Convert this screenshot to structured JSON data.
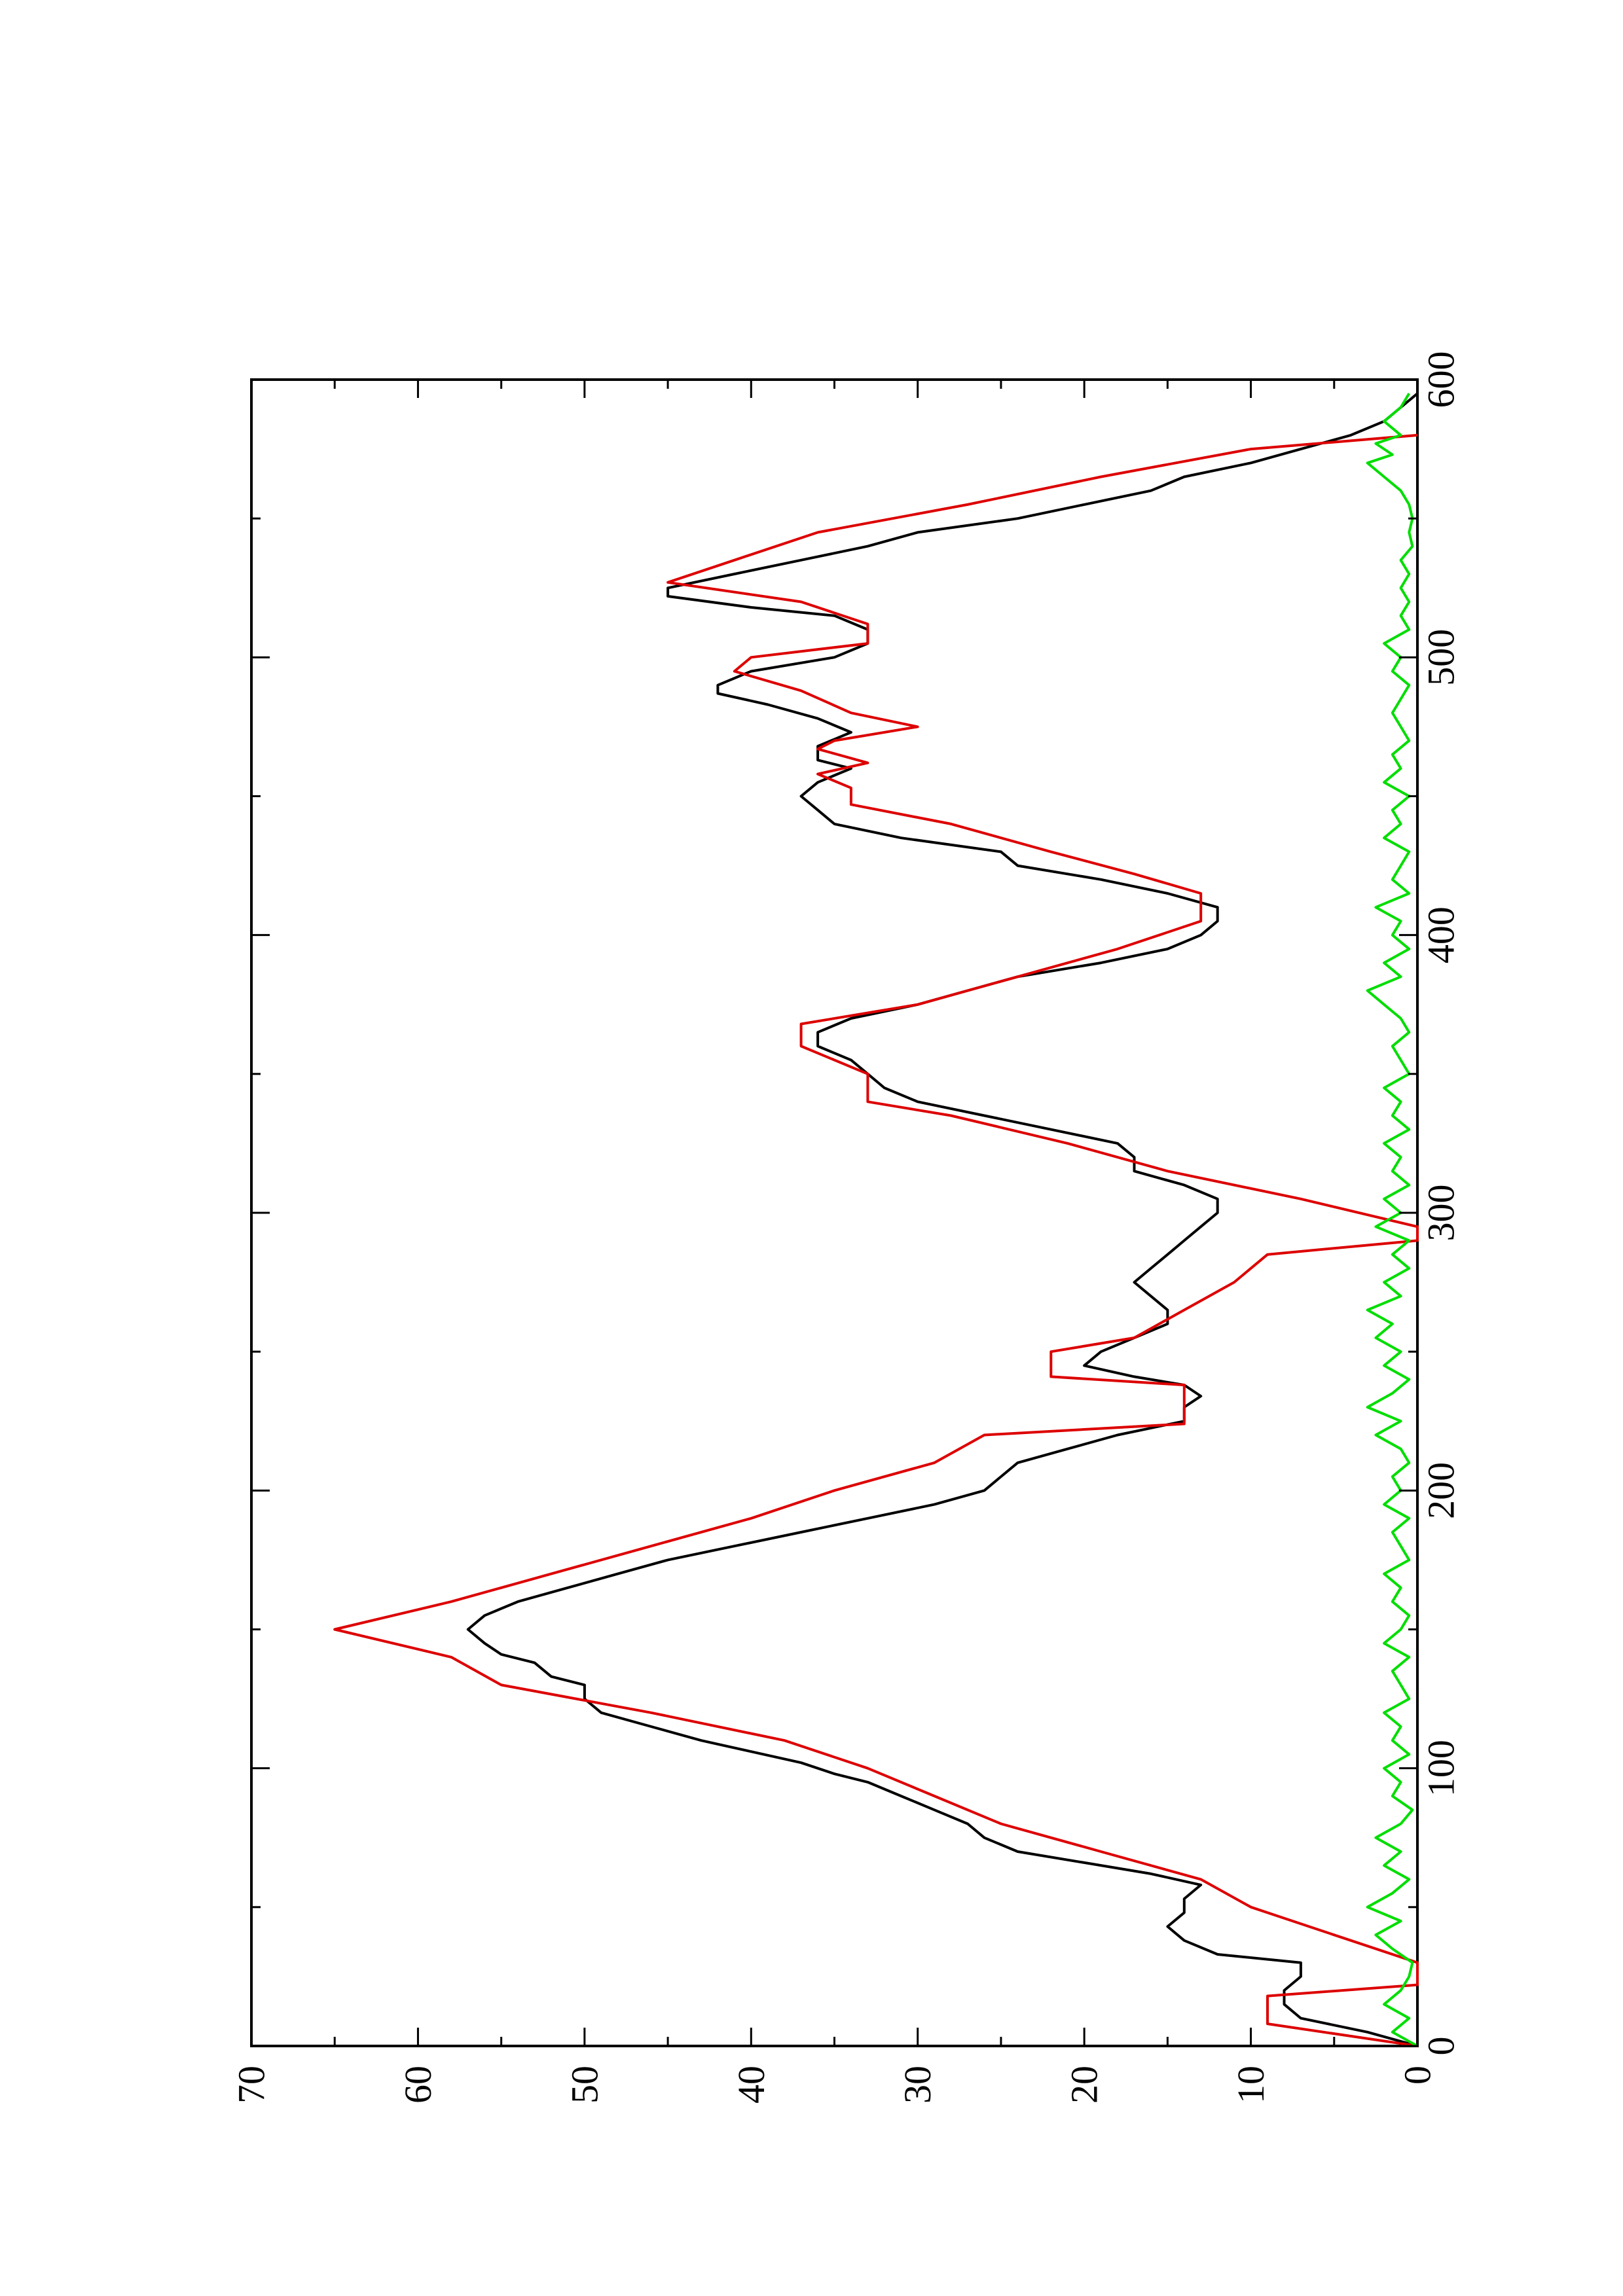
{
  "chart_data": {
    "type": "line",
    "title": "",
    "xlabel": "",
    "ylabel": "",
    "orientation": "rotated-90-ccw",
    "xlim": [
      0,
      600
    ],
    "ylim": [
      0,
      70
    ],
    "x_ticks": [
      0,
      100,
      200,
      300,
      400,
      500,
      600
    ],
    "x_tick_labels": [
      "0",
      "100",
      "200",
      "300",
      "400",
      "500",
      "600"
    ],
    "x_minor_ticks": [
      50,
      150,
      250,
      350,
      450,
      550
    ],
    "y_ticks": [
      0,
      10,
      20,
      30,
      40,
      50,
      60,
      70
    ],
    "y_tick_labels": [
      "0",
      "10",
      "20",
      "30",
      "40",
      "50",
      "60",
      "70"
    ],
    "y_minor_ticks": [
      5,
      15,
      25,
      35,
      45,
      55,
      65
    ],
    "grid": false,
    "legend": "none",
    "colors": {
      "series_a": "#000000",
      "series_b": "#dd0000",
      "series_c": "#00dd00",
      "axes": "#000000"
    },
    "series": [
      {
        "color": "#000000",
        "points": [
          [
            0,
            0
          ],
          [
            5,
            3
          ],
          [
            10,
            7
          ],
          [
            15,
            8
          ],
          [
            20,
            8
          ],
          [
            25,
            7
          ],
          [
            30,
            7
          ],
          [
            33,
            12
          ],
          [
            38,
            14
          ],
          [
            43,
            15
          ],
          [
            48,
            14
          ],
          [
            53,
            14
          ],
          [
            58,
            13
          ],
          [
            62,
            16
          ],
          [
            66,
            20
          ],
          [
            70,
            24
          ],
          [
            75,
            26
          ],
          [
            80,
            27
          ],
          [
            85,
            29
          ],
          [
            90,
            31
          ],
          [
            95,
            33
          ],
          [
            98,
            35
          ],
          [
            102,
            37
          ],
          [
            106,
            40
          ],
          [
            110,
            43
          ],
          [
            115,
            46
          ],
          [
            120,
            49
          ],
          [
            125,
            50
          ],
          [
            130,
            50
          ],
          [
            133,
            52
          ],
          [
            138,
            53
          ],
          [
            141,
            55
          ],
          [
            145,
            56
          ],
          [
            150,
            57
          ],
          [
            155,
            56
          ],
          [
            160,
            54
          ],
          [
            165,
            51
          ],
          [
            170,
            48
          ],
          [
            175,
            45
          ],
          [
            180,
            41
          ],
          [
            185,
            37
          ],
          [
            190,
            33
          ],
          [
            195,
            29
          ],
          [
            200,
            26
          ],
          [
            205,
            25
          ],
          [
            210,
            24
          ],
          [
            215,
            21
          ],
          [
            220,
            18
          ],
          [
            225,
            14
          ],
          [
            230,
            14
          ],
          [
            234,
            13
          ],
          [
            238,
            14
          ],
          [
            241,
            17
          ],
          [
            245,
            20
          ],
          [
            250,
            19
          ],
          [
            255,
            17
          ],
          [
            260,
            15
          ],
          [
            265,
            15
          ],
          [
            270,
            16
          ],
          [
            275,
            17
          ],
          [
            280,
            16
          ],
          [
            285,
            15
          ],
          [
            290,
            14
          ],
          [
            295,
            13
          ],
          [
            300,
            12
          ],
          [
            305,
            12
          ],
          [
            310,
            14
          ],
          [
            315,
            17
          ],
          [
            320,
            17
          ],
          [
            325,
            18
          ],
          [
            330,
            22
          ],
          [
            335,
            26
          ],
          [
            340,
            30
          ],
          [
            345,
            32
          ],
          [
            350,
            33
          ],
          [
            355,
            34
          ],
          [
            360,
            36
          ],
          [
            365,
            36
          ],
          [
            370,
            34
          ],
          [
            375,
            30
          ],
          [
            380,
            27
          ],
          [
            385,
            24
          ],
          [
            390,
            19
          ],
          [
            395,
            15
          ],
          [
            400,
            13
          ],
          [
            405,
            12
          ],
          [
            410,
            12
          ],
          [
            415,
            15
          ],
          [
            420,
            19
          ],
          [
            425,
            24
          ],
          [
            430,
            25
          ],
          [
            435,
            31
          ],
          [
            440,
            35
          ],
          [
            445,
            36
          ],
          [
            450,
            37
          ],
          [
            455,
            36
          ],
          [
            460,
            34
          ],
          [
            463,
            36
          ],
          [
            468,
            36
          ],
          [
            473,
            34
          ],
          [
            478,
            36
          ],
          [
            483,
            39
          ],
          [
            487,
            42
          ],
          [
            490,
            42
          ],
          [
            495,
            40
          ],
          [
            500,
            35
          ],
          [
            505,
            33
          ],
          [
            510,
            33
          ],
          [
            515,
            35
          ],
          [
            518,
            40
          ],
          [
            522,
            45
          ],
          [
            525,
            45
          ],
          [
            530,
            41
          ],
          [
            535,
            37
          ],
          [
            540,
            33
          ],
          [
            545,
            30
          ],
          [
            550,
            24
          ],
          [
            555,
            20
          ],
          [
            560,
            16
          ],
          [
            565,
            14
          ],
          [
            570,
            10
          ],
          [
            575,
            7
          ],
          [
            580,
            4
          ],
          [
            585,
            2
          ],
          [
            590,
            1
          ],
          [
            595,
            0
          ]
        ]
      },
      {
        "color": "#dd0000",
        "points": [
          [
            0,
            0
          ],
          [
            8,
            9
          ],
          [
            18,
            9
          ],
          [
            22,
            0
          ],
          [
            30,
            0
          ],
          [
            40,
            5
          ],
          [
            50,
            10
          ],
          [
            60,
            13
          ],
          [
            70,
            19
          ],
          [
            80,
            25
          ],
          [
            90,
            29
          ],
          [
            100,
            33
          ],
          [
            110,
            38
          ],
          [
            120,
            46
          ],
          [
            130,
            55
          ],
          [
            140,
            58
          ],
          [
            150,
            65
          ],
          [
            160,
            58
          ],
          [
            170,
            52
          ],
          [
            180,
            46
          ],
          [
            190,
            40
          ],
          [
            200,
            35
          ],
          [
            210,
            29
          ],
          [
            220,
            26
          ],
          [
            224,
            14
          ],
          [
            238,
            14
          ],
          [
            241,
            22
          ],
          [
            250,
            22
          ],
          [
            255,
            17
          ],
          [
            265,
            14
          ],
          [
            275,
            11
          ],
          [
            285,
            9
          ],
          [
            290,
            0
          ],
          [
            295,
            0
          ],
          [
            305,
            7
          ],
          [
            315,
            15
          ],
          [
            325,
            21
          ],
          [
            335,
            28
          ],
          [
            340,
            33
          ],
          [
            350,
            33
          ],
          [
            360,
            37
          ],
          [
            368,
            37
          ],
          [
            375,
            30
          ],
          [
            385,
            24
          ],
          [
            395,
            18
          ],
          [
            405,
            13
          ],
          [
            415,
            13
          ],
          [
            422,
            17
          ],
          [
            430,
            22
          ],
          [
            440,
            28
          ],
          [
            447,
            34
          ],
          [
            453,
            34
          ],
          [
            458,
            36
          ],
          [
            462,
            33
          ],
          [
            467,
            36
          ],
          [
            470,
            35
          ],
          [
            475,
            30
          ],
          [
            480,
            34
          ],
          [
            488,
            37
          ],
          [
            495,
            41
          ],
          [
            500,
            40
          ],
          [
            505,
            33
          ],
          [
            512,
            33
          ],
          [
            520,
            37
          ],
          [
            527,
            45
          ],
          [
            535,
            41
          ],
          [
            545,
            36
          ],
          [
            555,
            27
          ],
          [
            565,
            19
          ],
          [
            575,
            10
          ],
          [
            580,
            0
          ]
        ]
      },
      {
        "color": "#00dd00",
        "points": [
          [
            0,
            0
          ],
          [
            5,
            1.5
          ],
          [
            10,
            0.5
          ],
          [
            15,
            2
          ],
          [
            20,
            1
          ],
          [
            25,
            0.5
          ],
          [
            30,
            0.3
          ],
          [
            35,
            1.5
          ],
          [
            40,
            2.5
          ],
          [
            45,
            1
          ],
          [
            50,
            3
          ],
          [
            55,
            1.5
          ],
          [
            60,
            0.5
          ],
          [
            65,
            2
          ],
          [
            70,
            1
          ],
          [
            75,
            2.5
          ],
          [
            80,
            1
          ],
          [
            85,
            0.3
          ],
          [
            90,
            1.5
          ],
          [
            95,
            1
          ],
          [
            100,
            2
          ],
          [
            105,
            0.5
          ],
          [
            110,
            1.5
          ],
          [
            115,
            1
          ],
          [
            120,
            2
          ],
          [
            125,
            0.5
          ],
          [
            130,
            1
          ],
          [
            135,
            1.5
          ],
          [
            140,
            0.5
          ],
          [
            145,
            2
          ],
          [
            150,
            1
          ],
          [
            155,
            0.5
          ],
          [
            160,
            1.5
          ],
          [
            165,
            1
          ],
          [
            170,
            2
          ],
          [
            175,
            0.5
          ],
          [
            180,
            1
          ],
          [
            185,
            1.5
          ],
          [
            190,
            0.5
          ],
          [
            195,
            2
          ],
          [
            200,
            1
          ],
          [
            205,
            1.5
          ],
          [
            210,
            0.5
          ],
          [
            215,
            1
          ],
          [
            220,
            2.5
          ],
          [
            225,
            1
          ],
          [
            230,
            3
          ],
          [
            235,
            1.5
          ],
          [
            240,
            0.5
          ],
          [
            245,
            2
          ],
          [
            250,
            1
          ],
          [
            255,
            2.5
          ],
          [
            260,
            1.5
          ],
          [
            265,
            3
          ],
          [
            270,
            1
          ],
          [
            275,
            2
          ],
          [
            280,
            0.5
          ],
          [
            285,
            1.5
          ],
          [
            290,
            0.5
          ],
          [
            295,
            2.5
          ],
          [
            300,
            1
          ],
          [
            305,
            2
          ],
          [
            310,
            0.5
          ],
          [
            315,
            1.5
          ],
          [
            320,
            1
          ],
          [
            325,
            2
          ],
          [
            330,
            0.5
          ],
          [
            335,
            1.5
          ],
          [
            340,
            1
          ],
          [
            345,
            2
          ],
          [
            350,
            0.5
          ],
          [
            355,
            1
          ],
          [
            360,
            1.5
          ],
          [
            365,
            0.5
          ],
          [
            370,
            1
          ],
          [
            375,
            2
          ],
          [
            380,
            3
          ],
          [
            385,
            1
          ],
          [
            390,
            2
          ],
          [
            395,
            0.5
          ],
          [
            400,
            1.5
          ],
          [
            405,
            1
          ],
          [
            410,
            2.5
          ],
          [
            415,
            0.5
          ],
          [
            420,
            1.5
          ],
          [
            425,
            1
          ],
          [
            430,
            0.5
          ],
          [
            435,
            2
          ],
          [
            440,
            1
          ],
          [
            445,
            1.5
          ],
          [
            450,
            0.5
          ],
          [
            455,
            2
          ],
          [
            460,
            1
          ],
          [
            465,
            1.5
          ],
          [
            470,
            0.5
          ],
          [
            475,
            1
          ],
          [
            480,
            1.5
          ],
          [
            485,
            1
          ],
          [
            490,
            0.5
          ],
          [
            495,
            1.5
          ],
          [
            500,
            1
          ],
          [
            505,
            2
          ],
          [
            510,
            0.5
          ],
          [
            515,
            1
          ],
          [
            520,
            0.5
          ],
          [
            525,
            1
          ],
          [
            530,
            0.5
          ],
          [
            535,
            1
          ],
          [
            540,
            0.3
          ],
          [
            545,
            0.5
          ],
          [
            550,
            0.3
          ],
          [
            555,
            0.5
          ],
          [
            560,
            1
          ],
          [
            565,
            2
          ],
          [
            570,
            3
          ],
          [
            573,
            1.5
          ],
          [
            577,
            2.5
          ],
          [
            580,
            1
          ],
          [
            585,
            2
          ],
          [
            590,
            1
          ],
          [
            595,
            0.5
          ]
        ]
      }
    ]
  }
}
